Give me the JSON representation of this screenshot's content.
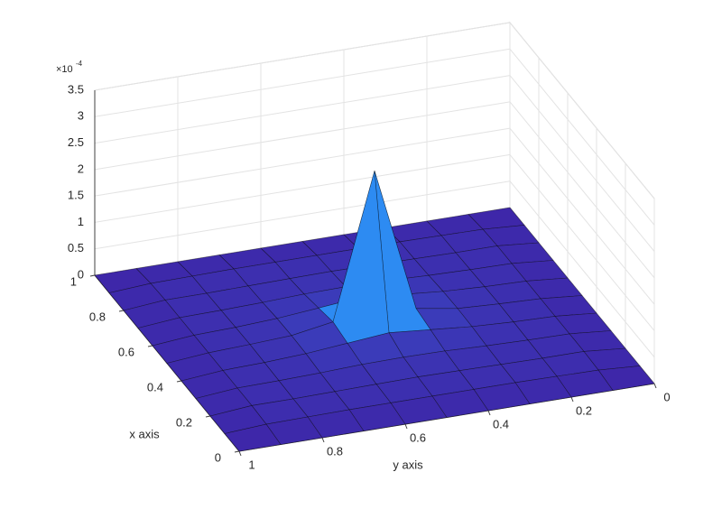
{
  "chart_data": {
    "type": "surface",
    "x_label": "x axis",
    "y_label": "y axis",
    "z_scale_base": "×10",
    "z_scale_exponent": "-4",
    "x": [
      0,
      0.1,
      0.2,
      0.3,
      0.4,
      0.5,
      0.6,
      0.7,
      0.8,
      0.9,
      1
    ],
    "y": [
      0,
      0.1,
      0.2,
      0.3,
      0.4,
      0.5,
      0.6,
      0.7,
      0.8,
      0.9,
      1
    ],
    "z": [
      [
        0,
        0,
        0,
        0,
        0,
        0,
        0,
        0,
        0,
        0,
        0
      ],
      [
        0,
        0.05,
        0.06,
        0.07,
        0.07,
        0.07,
        0.07,
        0.07,
        0.06,
        0.05,
        0
      ],
      [
        0,
        0.07,
        0.07,
        0.08,
        0.09,
        0.1,
        0.09,
        0.08,
        0.07,
        0.07,
        0
      ],
      [
        0,
        0.07,
        0.08,
        0.1,
        0.13,
        0.14,
        0.13,
        0.1,
        0.08,
        0.07,
        0
      ],
      [
        0,
        0.07,
        0.09,
        0.13,
        0.2,
        0.27,
        0.2,
        0.13,
        0.09,
        0.07,
        0
      ],
      [
        0,
        0.07,
        0.1,
        0.14,
        0.27,
        3.0,
        0.27,
        0.14,
        0.1,
        0.07,
        0
      ],
      [
        0,
        0.07,
        0.09,
        0.13,
        0.2,
        0.27,
        0.2,
        0.13,
        0.09,
        0.07,
        0
      ],
      [
        0,
        0.07,
        0.08,
        0.1,
        0.13,
        0.14,
        0.13,
        0.1,
        0.08,
        0.07,
        0
      ],
      [
        0,
        0.07,
        0.07,
        0.08,
        0.09,
        0.1,
        0.09,
        0.08,
        0.07,
        0.07,
        0
      ],
      [
        0,
        0.05,
        0.06,
        0.07,
        0.07,
        0.07,
        0.07,
        0.07,
        0.06,
        0.05,
        0
      ],
      [
        0,
        0,
        0,
        0,
        0,
        0,
        0,
        0,
        0,
        0,
        0
      ]
    ],
    "xlim": [
      0,
      1
    ],
    "ylim": [
      0,
      1
    ],
    "zlim": [
      0,
      3.5
    ],
    "xticks": [
      0,
      0.2,
      0.4,
      0.6,
      0.8,
      1
    ],
    "yticks": [
      0,
      0.2,
      0.4,
      0.6,
      0.8,
      1
    ],
    "zticks": [
      0,
      0.5,
      1,
      1.5,
      2,
      2.5,
      3,
      3.5
    ],
    "grid": true,
    "colormap": [
      "#3e26a8",
      "#2e87f7",
      "#1dc2b0",
      "#a5be3a",
      "#f9fb14"
    ],
    "edge_color": "#000000"
  }
}
